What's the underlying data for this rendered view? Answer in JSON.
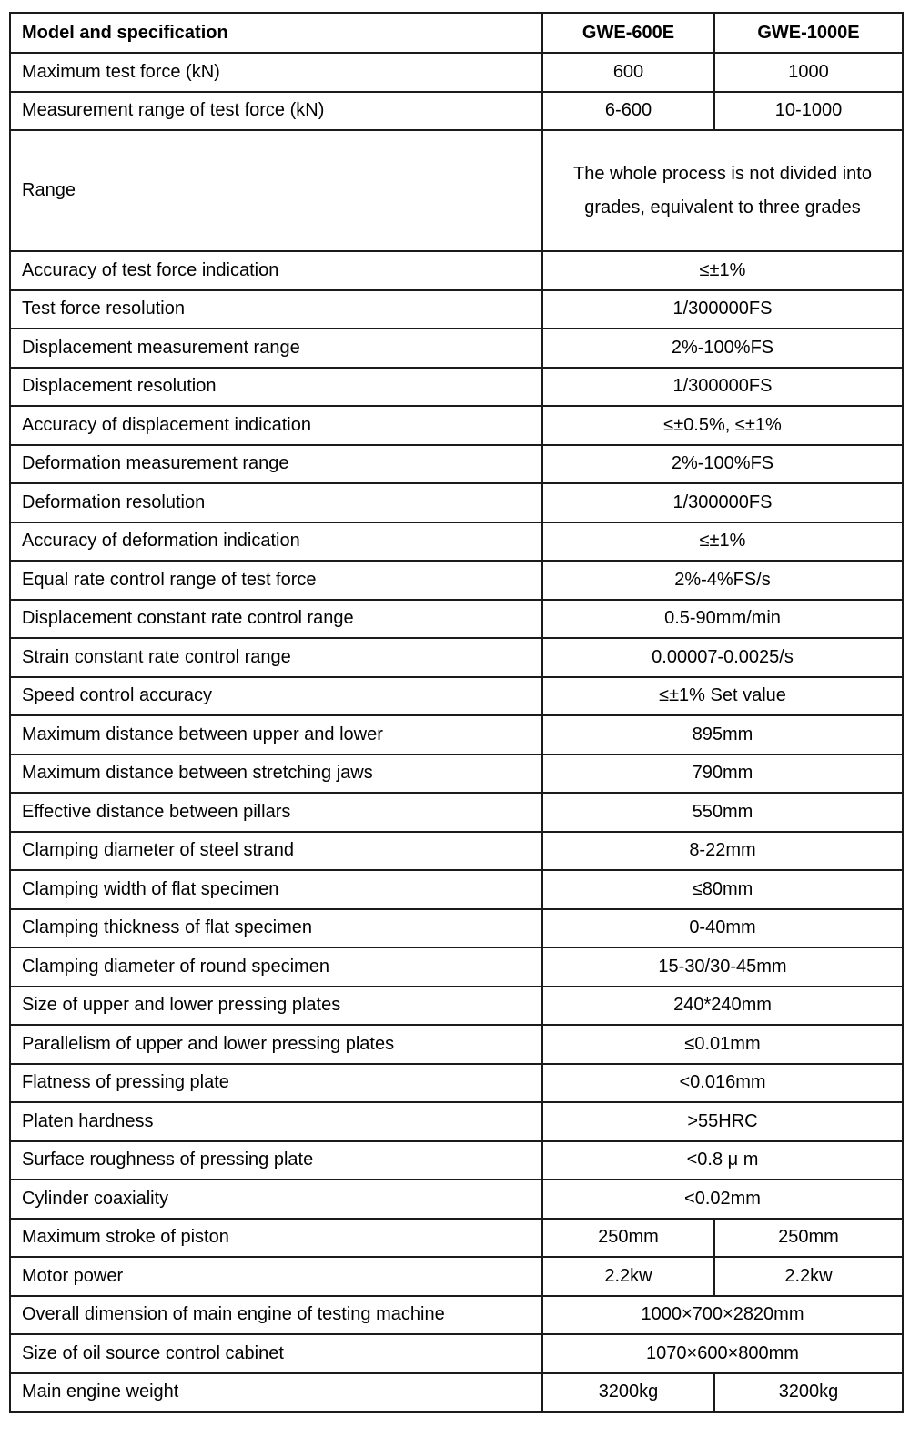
{
  "page": {
    "background": "#ffffff",
    "border_color": "#1b1b1b",
    "text_color": "#000000"
  },
  "table": {
    "header": {
      "label": "Model and specification",
      "model_1": "GWE-600E",
      "model_2": "GWE-1000E"
    },
    "rows": [
      {
        "label": "Maximum test force (kN)",
        "values": [
          "600",
          "1000"
        ]
      },
      {
        "label": "Measurement range of test force (kN)",
        "values": [
          "6-600",
          "10-1000"
        ]
      },
      {
        "label": "Range",
        "value": "The whole process is not divided into grades, equivalent to three grades",
        "multiline": true
      },
      {
        "label": "Accuracy of test force indication",
        "value": "≤±1%"
      },
      {
        "label": "Test force resolution",
        "value": "1/300000FS"
      },
      {
        "label": "Displacement measurement range",
        "value": "2%-100%FS"
      },
      {
        "label": "Displacement resolution",
        "value": "1/300000FS"
      },
      {
        "label": "Accuracy of displacement indication",
        "value": "≤±0.5%, ≤±1%"
      },
      {
        "label": "Deformation measurement range",
        "value": "2%-100%FS"
      },
      {
        "label": "Deformation resolution",
        "value": "1/300000FS"
      },
      {
        "label": "Accuracy of deformation indication",
        "value": "≤±1%"
      },
      {
        "label": "Equal rate control range of test force",
        "value": "2%-4%FS/s"
      },
      {
        "label": "Displacement constant rate control range",
        "value": "0.5-90mm/min"
      },
      {
        "label": "Strain constant rate control range",
        "value": "0.00007-0.0025/s"
      },
      {
        "label": "Speed control accuracy",
        "value": "≤±1% Set value"
      },
      {
        "label": "Maximum distance between upper and lower",
        "value": "895mm"
      },
      {
        "label": "Maximum distance between stretching jaws",
        "value": "790mm"
      },
      {
        "label": "Effective distance between pillars",
        "value": "550mm"
      },
      {
        "label": "Clamping diameter of steel strand",
        "value": "8-22mm"
      },
      {
        "label": "Clamping width of flat specimen",
        "value": "≤80mm"
      },
      {
        "label": "Clamping thickness of flat specimen",
        "value": "0-40mm"
      },
      {
        "label": "Clamping diameter of round specimen",
        "value": "15-30/30-45mm"
      },
      {
        "label": "Size of upper and lower pressing plates",
        "value": "240*240mm"
      },
      {
        "label": "Parallelism of upper and lower pressing plates",
        "value": "≤0.01mm"
      },
      {
        "label": "Flatness of pressing plate",
        "value": "<0.016mm"
      },
      {
        "label": "Platen hardness",
        "value": ">55HRC"
      },
      {
        "label": "Surface roughness of pressing plate",
        "value": "<0.8 μ m"
      },
      {
        "label": "Cylinder coaxiality",
        "value": "<0.02mm"
      },
      {
        "label": "Maximum stroke of piston",
        "values": [
          "250mm",
          "250mm"
        ]
      },
      {
        "label": "Motor power",
        "values": [
          "2.2kw",
          "2.2kw"
        ]
      },
      {
        "label": "Overall dimension of main engine of testing machine",
        "value": "1000×700×2820mm"
      },
      {
        "label": "Size of oil source control cabinet",
        "value": "1070×600×800mm"
      },
      {
        "label": "Main engine weight",
        "values": [
          "3200kg",
          "3200kg"
        ]
      }
    ]
  }
}
